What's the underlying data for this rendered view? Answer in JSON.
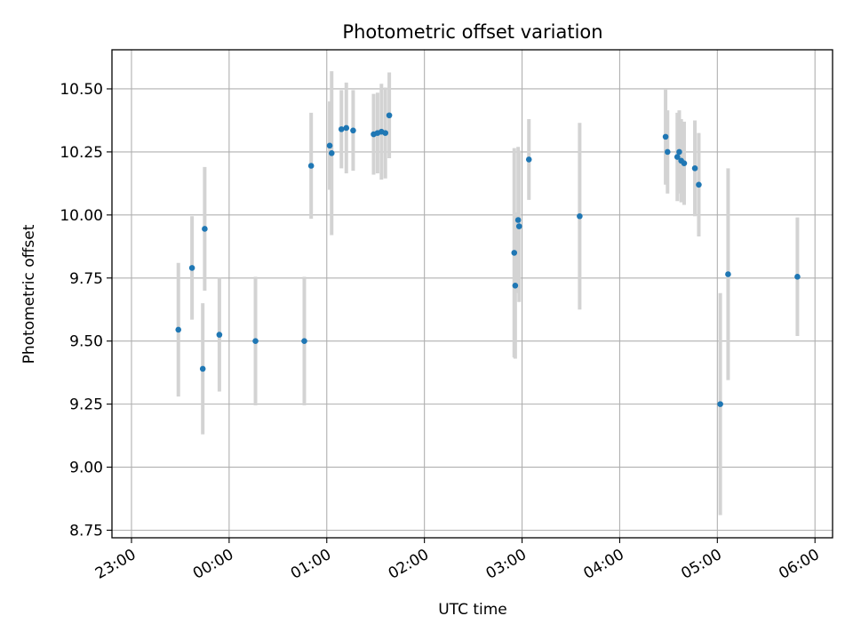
{
  "chart_data": {
    "type": "scatter",
    "title": "Photometric offset variation",
    "xlabel": "UTC time",
    "ylabel": "Photometric offset",
    "x_unit": "hours after 00:00 UTC",
    "xlim": [
      -1.2,
      6.18
    ],
    "ylim": [
      8.72,
      10.655
    ],
    "grid": true,
    "legend": "none",
    "x_ticks": [
      {
        "value": -1,
        "label": "23:00"
      },
      {
        "value": 0,
        "label": "00:00"
      },
      {
        "value": 1,
        "label": "01:00"
      },
      {
        "value": 2,
        "label": "02:00"
      },
      {
        "value": 3,
        "label": "03:00"
      },
      {
        "value": 4,
        "label": "04:00"
      },
      {
        "value": 5,
        "label": "05:00"
      },
      {
        "value": 6,
        "label": "06:00"
      }
    ],
    "y_ticks": [
      {
        "value": 8.75,
        "label": "8.75"
      },
      {
        "value": 9.0,
        "label": "9.00"
      },
      {
        "value": 9.25,
        "label": "9.25"
      },
      {
        "value": 9.5,
        "label": "9.50"
      },
      {
        "value": 9.75,
        "label": "9.75"
      },
      {
        "value": 10.0,
        "label": "10.00"
      },
      {
        "value": 10.25,
        "label": "10.25"
      },
      {
        "value": 10.5,
        "label": "10.50"
      }
    ],
    "colors": {
      "point": "#1f77b4",
      "errorbar": "#d3d3d3",
      "grid": "#b0b0b0"
    },
    "points": [
      {
        "x": -0.27,
        "y": 9.39,
        "err": 0.26
      },
      {
        "x": -0.52,
        "y": 9.545,
        "err": 0.265
      },
      {
        "x": -0.38,
        "y": 9.79,
        "err": 0.205
      },
      {
        "x": -0.25,
        "y": 9.945,
        "err": 0.245
      },
      {
        "x": -0.1,
        "y": 9.525,
        "err": 0.225
      },
      {
        "x": 0.27,
        "y": 9.5,
        "err": 0.255
      },
      {
        "x": 0.77,
        "y": 9.5,
        "err": 0.255
      },
      {
        "x": 0.84,
        "y": 10.195,
        "err": 0.21
      },
      {
        "x": 1.03,
        "y": 10.275,
        "err": 0.175
      },
      {
        "x": 1.05,
        "y": 10.245,
        "err": 0.325
      },
      {
        "x": 1.15,
        "y": 10.34,
        "err": 0.155
      },
      {
        "x": 1.2,
        "y": 10.345,
        "err": 0.18
      },
      {
        "x": 1.27,
        "y": 10.335,
        "err": 0.16
      },
      {
        "x": 1.48,
        "y": 10.32,
        "err": 0.16
      },
      {
        "x": 1.52,
        "y": 10.325,
        "err": 0.16
      },
      {
        "x": 1.56,
        "y": 10.33,
        "err": 0.19
      },
      {
        "x": 1.6,
        "y": 10.325,
        "err": 0.18
      },
      {
        "x": 1.64,
        "y": 10.395,
        "err": 0.17
      },
      {
        "x": 2.92,
        "y": 9.85,
        "err": 0.415
      },
      {
        "x": 2.93,
        "y": 9.72,
        "err": 0.29
      },
      {
        "x": 2.96,
        "y": 9.98,
        "err": 0.29
      },
      {
        "x": 2.97,
        "y": 9.955,
        "err": 0.3
      },
      {
        "x": 3.07,
        "y": 10.22,
        "err": 0.16
      },
      {
        "x": 3.59,
        "y": 9.995,
        "err": 0.37
      },
      {
        "x": 4.47,
        "y": 10.31,
        "err": 0.19
      },
      {
        "x": 4.49,
        "y": 10.25,
        "err": 0.165
      },
      {
        "x": 4.59,
        "y": 10.23,
        "err": 0.175
      },
      {
        "x": 4.61,
        "y": 10.25,
        "err": 0.165
      },
      {
        "x": 4.63,
        "y": 10.215,
        "err": 0.165
      },
      {
        "x": 4.66,
        "y": 10.205,
        "err": 0.165
      },
      {
        "x": 4.77,
        "y": 10.185,
        "err": 0.19
      },
      {
        "x": 4.81,
        "y": 10.12,
        "err": 0.205
      },
      {
        "x": 5.03,
        "y": 9.25,
        "err": 0.44
      },
      {
        "x": 5.11,
        "y": 9.765,
        "err": 0.42
      },
      {
        "x": 5.82,
        "y": 9.755,
        "err": 0.235
      }
    ]
  }
}
